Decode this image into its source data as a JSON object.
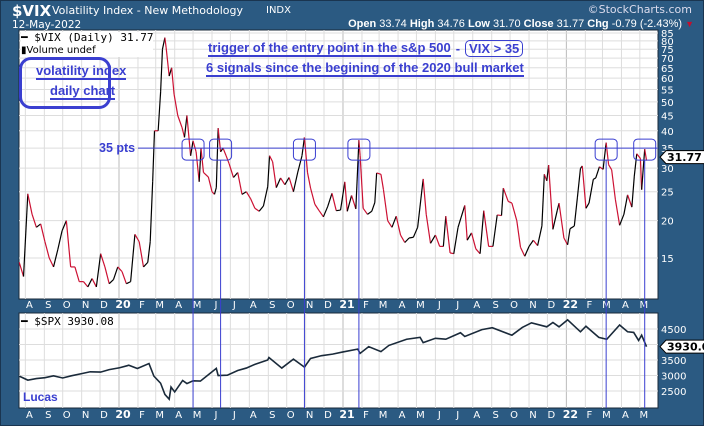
{
  "header": {
    "symbol": "$VIX",
    "name": "Volatility Index - New Methodology",
    "exchange": "INDX",
    "copyright": "©StockCharts.com",
    "date": "12-May-2022",
    "open_label": "Open",
    "open": "33.74",
    "high_label": "High",
    "high": "34.76",
    "low_label": "Low",
    "low": "31.70",
    "close_label": "Close",
    "close": "31.77",
    "chg_label": "Chg",
    "chg": "-0.79 (-2.43%)"
  },
  "annotations": {
    "box_line1": "volatility index",
    "box_line2": "daily chart",
    "headline1": "trigger of the entry point in the s&p 500",
    "dash": "-",
    "vix_condition": "VIX > 35",
    "headline2": "6 signals since the begining of the 2020 bull market",
    "threshold_label": "35 pts",
    "author": "Lucas"
  },
  "colors": {
    "frame": "#2b5a82",
    "annotation": "#3a3fd0",
    "up": "#000000",
    "down": "#cc1133",
    "spx": "#1a2a3a"
  },
  "chart_data": [
    {
      "type": "line",
      "legend": "$VIX (Daily) 31.77",
      "legend2": "Volume undef",
      "scale": "log",
      "ylim": [
        12,
        85
      ],
      "yticks": [
        85,
        80,
        75,
        70,
        65,
        60,
        55,
        50,
        45,
        40,
        35,
        30,
        25,
        20,
        15
      ],
      "last_value": "31.77",
      "threshold": 35,
      "signal_dates": [
        "2020-05-01",
        "2020-06-15",
        "2020-10-30",
        "2021-01-27",
        "2022-03-07",
        "2022-05-09"
      ],
      "xticks": [
        [
          "2019-08-01",
          "A"
        ],
        [
          "2019-09-01",
          "S"
        ],
        [
          "2019-10-01",
          "O"
        ],
        [
          "2019-11-01",
          "N"
        ],
        [
          "2019-12-01",
          "D"
        ],
        [
          "2020-01-01",
          "20"
        ],
        [
          "2020-02-01",
          "F"
        ],
        [
          "2020-03-01",
          "M"
        ],
        [
          "2020-04-01",
          "A"
        ],
        [
          "2020-05-01",
          "M"
        ],
        [
          "2020-06-01",
          "J"
        ],
        [
          "2020-07-01",
          "J"
        ],
        [
          "2020-08-01",
          "A"
        ],
        [
          "2020-09-01",
          "S"
        ],
        [
          "2020-10-01",
          "O"
        ],
        [
          "2020-11-01",
          "N"
        ],
        [
          "2020-12-01",
          "D"
        ],
        [
          "2021-01-01",
          "21"
        ],
        [
          "2021-02-01",
          "F"
        ],
        [
          "2021-03-01",
          "M"
        ],
        [
          "2021-04-01",
          "A"
        ],
        [
          "2021-05-01",
          "M"
        ],
        [
          "2021-06-01",
          "J"
        ],
        [
          "2021-07-01",
          "J"
        ],
        [
          "2021-08-01",
          "A"
        ],
        [
          "2021-09-01",
          "S"
        ],
        [
          "2021-10-01",
          "O"
        ],
        [
          "2021-11-01",
          "N"
        ],
        [
          "2021-12-01",
          "D"
        ],
        [
          "2022-01-01",
          "22"
        ],
        [
          "2022-02-01",
          "F"
        ],
        [
          "2022-03-01",
          "M"
        ],
        [
          "2022-04-01",
          "A"
        ],
        [
          "2022-05-01",
          "M"
        ]
      ],
      "series": [
        [
          "2019-07-22",
          14.5
        ],
        [
          "2019-07-29",
          13
        ],
        [
          "2019-08-05",
          24.6
        ],
        [
          "2019-08-12",
          21
        ],
        [
          "2019-08-19",
          19
        ],
        [
          "2019-08-26",
          19.5
        ],
        [
          "2019-09-02",
          17
        ],
        [
          "2019-09-09",
          15
        ],
        [
          "2019-09-16",
          14
        ],
        [
          "2019-09-23",
          16
        ],
        [
          "2019-09-30",
          18.5
        ],
        [
          "2019-10-07",
          20
        ],
        [
          "2019-10-14",
          14
        ],
        [
          "2019-10-21",
          14
        ],
        [
          "2019-10-28",
          12.5
        ],
        [
          "2019-11-04",
          12.5
        ],
        [
          "2019-11-11",
          12
        ],
        [
          "2019-11-18",
          12.8
        ],
        [
          "2019-11-25",
          12
        ],
        [
          "2019-12-02",
          15.5
        ],
        [
          "2019-12-09",
          14
        ],
        [
          "2019-12-16",
          12.3
        ],
        [
          "2019-12-23",
          12.7
        ],
        [
          "2019-12-30",
          14
        ],
        [
          "2020-01-06",
          13.5
        ],
        [
          "2020-01-13",
          12.3
        ],
        [
          "2020-01-20",
          12.5
        ],
        [
          "2020-01-27",
          18
        ],
        [
          "2020-02-03",
          17
        ],
        [
          "2020-02-10",
          14
        ],
        [
          "2020-02-17",
          14.5
        ],
        [
          "2020-02-21",
          17
        ],
        [
          "2020-02-25",
          27
        ],
        [
          "2020-02-28",
          40
        ],
        [
          "2020-03-05",
          40
        ],
        [
          "2020-03-09",
          54
        ],
        [
          "2020-03-12",
          75
        ],
        [
          "2020-03-16",
          82
        ],
        [
          "2020-03-18",
          76
        ],
        [
          "2020-03-23",
          61
        ],
        [
          "2020-03-27",
          65
        ],
        [
          "2020-03-31",
          53
        ],
        [
          "2020-04-06",
          45
        ],
        [
          "2020-04-13",
          41
        ],
        [
          "2020-04-17",
          38
        ],
        [
          "2020-04-21",
          45
        ],
        [
          "2020-04-27",
          33
        ],
        [
          "2020-05-01",
          37
        ],
        [
          "2020-05-06",
          34
        ],
        [
          "2020-05-11",
          27
        ],
        [
          "2020-05-14",
          35
        ],
        [
          "2020-05-18",
          29
        ],
        [
          "2020-05-26",
          28
        ],
        [
          "2020-06-01",
          25
        ],
        [
          "2020-06-05",
          24.5
        ],
        [
          "2020-06-08",
          25.8
        ],
        [
          "2020-06-11",
          40.8
        ],
        [
          "2020-06-15",
          34
        ],
        [
          "2020-06-19",
          35
        ],
        [
          "2020-06-24",
          33
        ],
        [
          "2020-06-29",
          31
        ],
        [
          "2020-07-06",
          27.9
        ],
        [
          "2020-07-13",
          29
        ],
        [
          "2020-07-20",
          24.5
        ],
        [
          "2020-07-27",
          25
        ],
        [
          "2020-08-03",
          23.7
        ],
        [
          "2020-08-10",
          22
        ],
        [
          "2020-08-17",
          21.5
        ],
        [
          "2020-08-24",
          22.4
        ],
        [
          "2020-08-31",
          26
        ],
        [
          "2020-09-03",
          33
        ],
        [
          "2020-09-08",
          31.5
        ],
        [
          "2020-09-14",
          25.8
        ],
        [
          "2020-09-21",
          27.8
        ],
        [
          "2020-09-28",
          26.4
        ],
        [
          "2020-10-05",
          27.9
        ],
        [
          "2020-10-12",
          25
        ],
        [
          "2020-10-19",
          29
        ],
        [
          "2020-10-26",
          33
        ],
        [
          "2020-10-30",
          38
        ],
        [
          "2020-11-04",
          29
        ],
        [
          "2020-11-09",
          25.7
        ],
        [
          "2020-11-16",
          22.7
        ],
        [
          "2020-11-23",
          21.6
        ],
        [
          "2020-11-30",
          20.6
        ],
        [
          "2020-12-07",
          22.3
        ],
        [
          "2020-12-14",
          24.7
        ],
        [
          "2020-12-21",
          21.6
        ],
        [
          "2020-12-28",
          21.7
        ],
        [
          "2021-01-04",
          26.97
        ],
        [
          "2021-01-08",
          21.5
        ],
        [
          "2021-01-15",
          24.3
        ],
        [
          "2021-01-22",
          21.9
        ],
        [
          "2021-01-27",
          37.2
        ],
        [
          "2021-01-29",
          33
        ],
        [
          "2021-02-03",
          22
        ],
        [
          "2021-02-10",
          21
        ],
        [
          "2021-02-17",
          21.5
        ],
        [
          "2021-02-22",
          23
        ],
        [
          "2021-02-25",
          28.9
        ],
        [
          "2021-03-04",
          28.6
        ],
        [
          "2021-03-08",
          25.5
        ],
        [
          "2021-03-15",
          20
        ],
        [
          "2021-03-22",
          19
        ],
        [
          "2021-03-29",
          20.7
        ],
        [
          "2021-04-05",
          17.9
        ],
        [
          "2021-04-12",
          16.9
        ],
        [
          "2021-04-19",
          17.5
        ],
        [
          "2021-04-26",
          17.6
        ],
        [
          "2021-05-03",
          19
        ],
        [
          "2021-05-12",
          27.6
        ],
        [
          "2021-05-17",
          21
        ],
        [
          "2021-05-24",
          16.8
        ],
        [
          "2021-06-01",
          17.9
        ],
        [
          "2021-06-08",
          16.4
        ],
        [
          "2021-06-14",
          16.4
        ],
        [
          "2021-06-18",
          20.7
        ],
        [
          "2021-06-25",
          15.6
        ],
        [
          "2021-07-01",
          15.5
        ],
        [
          "2021-07-08",
          19
        ],
        [
          "2021-07-19",
          22.5
        ],
        [
          "2021-07-23",
          17.2
        ],
        [
          "2021-07-30",
          18.2
        ],
        [
          "2021-08-06",
          16.1
        ],
        [
          "2021-08-13",
          15.5
        ],
        [
          "2021-08-19",
          21.6
        ],
        [
          "2021-08-27",
          16.4
        ],
        [
          "2021-09-03",
          16.4
        ],
        [
          "2021-09-10",
          20.9
        ],
        [
          "2021-09-17",
          20.8
        ],
        [
          "2021-09-20",
          25.7
        ],
        [
          "2021-09-28",
          23.2
        ],
        [
          "2021-10-04",
          22.9
        ],
        [
          "2021-10-12",
          20
        ],
        [
          "2021-10-18",
          16.3
        ],
        [
          "2021-10-25",
          15.2
        ],
        [
          "2021-11-01",
          16.4
        ],
        [
          "2021-11-08",
          17.2
        ],
        [
          "2021-11-15",
          16.5
        ],
        [
          "2021-11-22",
          19.2
        ],
        [
          "2021-11-26",
          28.6
        ],
        [
          "2021-11-30",
          27.2
        ],
        [
          "2021-12-03",
          30.7
        ],
        [
          "2021-12-10",
          18.7
        ],
        [
          "2021-12-17",
          21.6
        ],
        [
          "2021-12-20",
          22.9
        ],
        [
          "2021-12-28",
          17.5
        ],
        [
          "2022-01-03",
          16.6
        ],
        [
          "2022-01-07",
          18.8
        ],
        [
          "2022-01-14",
          19.2
        ],
        [
          "2022-01-19",
          23.9
        ],
        [
          "2022-01-24",
          29.9
        ],
        [
          "2022-01-27",
          30.5
        ],
        [
          "2022-02-02",
          22
        ],
        [
          "2022-02-07",
          22.9
        ],
        [
          "2022-02-14",
          27.5
        ],
        [
          "2022-02-18",
          27.8
        ],
        [
          "2022-02-24",
          30.3
        ],
        [
          "2022-03-02",
          29.7
        ],
        [
          "2022-03-07",
          36.5
        ],
        [
          "2022-03-11",
          30.8
        ],
        [
          "2022-03-16",
          29.6
        ],
        [
          "2022-03-22",
          23.6
        ],
        [
          "2022-03-29",
          19.3
        ],
        [
          "2022-04-05",
          21.0
        ],
        [
          "2022-04-11",
          24.4
        ],
        [
          "2022-04-18",
          22.2
        ],
        [
          "2022-04-22",
          28.2
        ],
        [
          "2022-04-26",
          33.5
        ],
        [
          "2022-05-02",
          32.3
        ],
        [
          "2022-05-04",
          25.4
        ],
        [
          "2022-05-09",
          34.7
        ],
        [
          "2022-05-12",
          31.77
        ]
      ]
    },
    {
      "type": "line",
      "legend": "$SPX 3930.08",
      "scale": "linear",
      "ylim": [
        2200,
        4800
      ],
      "yticks": [
        4500,
        3500,
        3000,
        2500
      ],
      "last_value": "3930.08",
      "series": [
        [
          "2019-07-22",
          2980
        ],
        [
          "2019-08-05",
          2850
        ],
        [
          "2019-08-19",
          2900
        ],
        [
          "2019-09-02",
          2930
        ],
        [
          "2019-09-16",
          2990
        ],
        [
          "2019-10-01",
          2920
        ],
        [
          "2019-10-15",
          2990
        ],
        [
          "2019-11-01",
          3060
        ],
        [
          "2019-11-15",
          3120
        ],
        [
          "2019-12-02",
          3110
        ],
        [
          "2019-12-16",
          3190
        ],
        [
          "2020-01-02",
          3250
        ],
        [
          "2020-01-17",
          3330
        ],
        [
          "2020-01-31",
          3225
        ],
        [
          "2020-02-19",
          3386
        ],
        [
          "2020-02-27",
          2980
        ],
        [
          "2020-03-09",
          2750
        ],
        [
          "2020-03-16",
          2390
        ],
        [
          "2020-03-23",
          2237
        ],
        [
          "2020-03-26",
          2630
        ],
        [
          "2020-04-01",
          2470
        ],
        [
          "2020-04-14",
          2840
        ],
        [
          "2020-04-21",
          2740
        ],
        [
          "2020-05-01",
          2830
        ],
        [
          "2020-05-13",
          2820
        ],
        [
          "2020-05-27",
          3040
        ],
        [
          "2020-06-08",
          3230
        ],
        [
          "2020-06-11",
          3000
        ],
        [
          "2020-06-26",
          3010
        ],
        [
          "2020-07-13",
          3160
        ],
        [
          "2020-07-27",
          3240
        ],
        [
          "2020-08-10",
          3360
        ],
        [
          "2020-08-31",
          3500
        ],
        [
          "2020-09-02",
          3580
        ],
        [
          "2020-09-23",
          3240
        ],
        [
          "2020-10-12",
          3530
        ],
        [
          "2020-10-30",
          3270
        ],
        [
          "2020-11-09",
          3550
        ],
        [
          "2020-11-27",
          3640
        ],
        [
          "2020-12-15",
          3690
        ],
        [
          "2020-12-31",
          3756
        ],
        [
          "2021-01-25",
          3850
        ],
        [
          "2021-01-29",
          3714
        ],
        [
          "2021-02-12",
          3930
        ],
        [
          "2021-03-04",
          3770
        ],
        [
          "2021-03-17",
          3970
        ],
        [
          "2021-04-15",
          4170
        ],
        [
          "2021-05-07",
          4230
        ],
        [
          "2021-05-12",
          4060
        ],
        [
          "2021-06-01",
          4200
        ],
        [
          "2021-06-18",
          4170
        ],
        [
          "2021-07-12",
          4380
        ],
        [
          "2021-07-19",
          4260
        ],
        [
          "2021-08-16",
          4480
        ],
        [
          "2021-09-02",
          4540
        ],
        [
          "2021-10-04",
          4300
        ],
        [
          "2021-10-21",
          4550
        ],
        [
          "2021-11-05",
          4700
        ],
        [
          "2021-11-30",
          4570
        ],
        [
          "2021-12-10",
          4710
        ],
        [
          "2021-12-20",
          4570
        ],
        [
          "2022-01-03",
          4796
        ],
        [
          "2022-01-24",
          4410
        ],
        [
          "2022-02-02",
          4590
        ],
        [
          "2022-02-23",
          4230
        ],
        [
          "2022-03-08",
          4170
        ],
        [
          "2022-03-29",
          4630
        ],
        [
          "2022-04-11",
          4410
        ],
        [
          "2022-04-21",
          4390
        ],
        [
          "2022-04-29",
          4130
        ],
        [
          "2022-05-04",
          4300
        ],
        [
          "2022-05-12",
          3930.08
        ]
      ]
    }
  ]
}
